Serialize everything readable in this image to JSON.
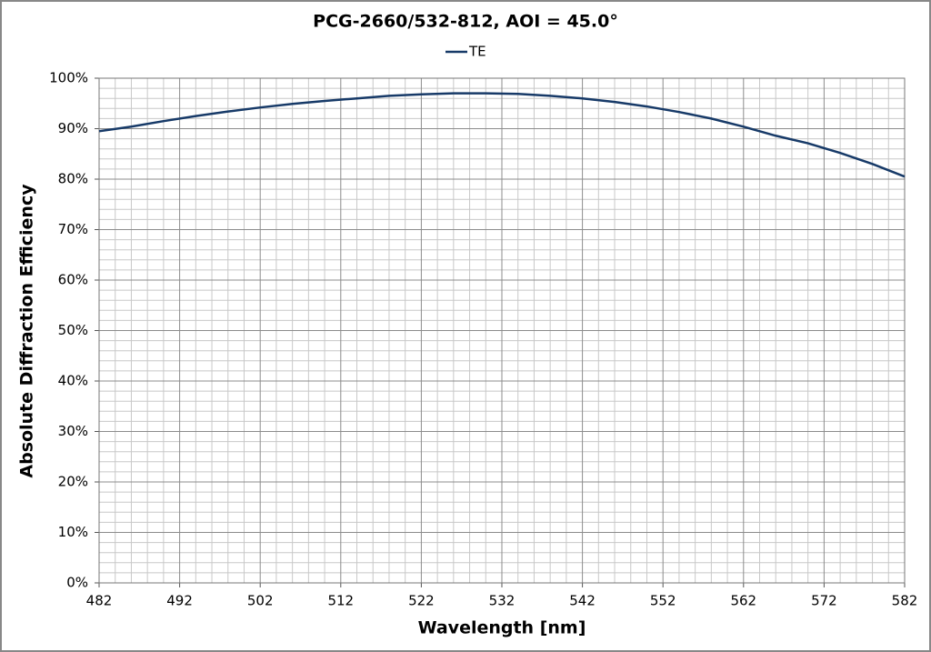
{
  "chart_data": {
    "type": "line",
    "title": "PCG-2660/532-812, AOI = 45.0°",
    "x_label": "Wavelength [nm]",
    "y_label": "Absolute Diffraction Efficiency",
    "x": [
      482,
      486,
      490,
      494,
      498,
      502,
      506,
      510,
      514,
      518,
      522,
      526,
      530,
      534,
      538,
      542,
      546,
      550,
      554,
      558,
      562,
      566,
      570,
      574,
      578,
      582
    ],
    "series": [
      {
        "name": "TE",
        "color": "#173a68",
        "values": [
          89.5,
          90.4,
          91.5,
          92.5,
          93.4,
          94.2,
          94.9,
          95.5,
          96.0,
          96.5,
          96.8,
          97.0,
          97.0,
          96.9,
          96.5,
          96.0,
          95.3,
          94.4,
          93.3,
          92.0,
          90.4,
          88.6,
          87.1,
          85.2,
          83.0,
          80.5
        ]
      }
    ],
    "xlim": [
      482,
      582
    ],
    "xticks": [
      482,
      492,
      502,
      512,
      522,
      532,
      542,
      552,
      562,
      572,
      582
    ],
    "ylim": [
      0,
      100
    ],
    "yticks": [
      {
        "value": 0,
        "label": "0%"
      },
      {
        "value": 10,
        "label": "10%"
      },
      {
        "value": 20,
        "label": "20%"
      },
      {
        "value": 30,
        "label": "30%"
      },
      {
        "value": 40,
        "label": "40%"
      },
      {
        "value": 50,
        "label": "50%"
      },
      {
        "value": 60,
        "label": "60%"
      },
      {
        "value": 70,
        "label": "70%"
      },
      {
        "value": 80,
        "label": "80%"
      },
      {
        "value": 90,
        "label": "90%"
      },
      {
        "value": 100,
        "label": "100%"
      }
    ],
    "grid": true,
    "minor_grid": true,
    "legend": "top"
  }
}
